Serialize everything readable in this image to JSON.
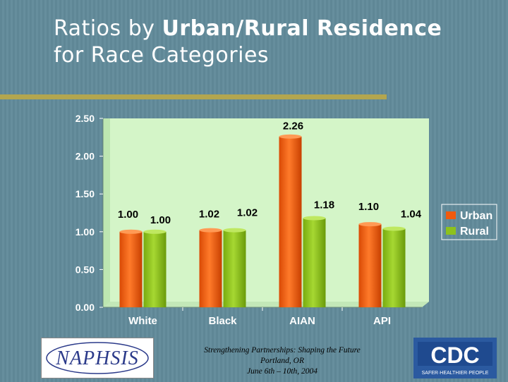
{
  "slide": {
    "title_part1": "Ratios by ",
    "title_part2": "Urban/Rural Residence",
    "title_part3": "for Race Categories"
  },
  "chart_data": {
    "type": "bar",
    "categories": [
      "White",
      "Black",
      "AIAN",
      "API"
    ],
    "series": [
      {
        "name": "Urban",
        "values": [
          1.0,
          1.02,
          2.26,
          1.1
        ],
        "labels": [
          "1.00",
          "1.02",
          "2.26",
          "1.10"
        ],
        "color": "#f05a0e"
      },
      {
        "name": "Rural",
        "values": [
          1.0,
          1.02,
          1.18,
          1.04
        ],
        "labels": [
          "1.00",
          "1.02",
          "1.18",
          "1.04"
        ],
        "color": "#8dc21c"
      }
    ],
    "yticks": [
      "0.00",
      "0.50",
      "1.00",
      "1.50",
      "2.00",
      "2.50"
    ],
    "ylim": [
      0,
      2.5
    ],
    "legend_position": "right",
    "plot_background": "#d4f5c8"
  },
  "footer": {
    "line1": "Strengthening Partnerships: Shaping the Future",
    "line2": "Portland, OR",
    "line3": "June 6th – 10th, 2004"
  },
  "logos": {
    "left": "NAPHSIS",
    "right": "CDC",
    "right_tagline": "SAFER·HEALTHIER·PEOPLE"
  }
}
